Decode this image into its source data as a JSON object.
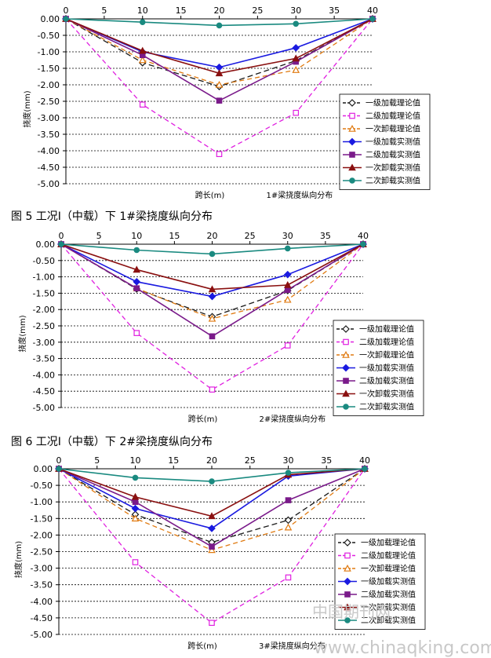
{
  "series_styles": [
    {
      "color": "#1a1a1a",
      "dash": "7,4",
      "marker": "diamond-open"
    },
    {
      "color": "#e020e0",
      "dash": "6,4",
      "marker": "square-open"
    },
    {
      "color": "#e07a10",
      "dash": "6,4",
      "marker": "triangle-open"
    },
    {
      "color": "#1a1ae0",
      "dash": "",
      "marker": "diamond"
    },
    {
      "color": "#7a1a8a",
      "dash": "",
      "marker": "square"
    },
    {
      "color": "#8a1010",
      "dash": "",
      "marker": "triangle"
    },
    {
      "color": "#1a8a80",
      "dash": "",
      "marker": "circle"
    }
  ],
  "captions": [
    "图 5 工况Ⅰ（中载）下 1#梁挠度纵向分布",
    "图 6 工况Ⅰ（中载）下 2#梁挠度纵向分布"
  ],
  "watermark": {
    "text": "www.chinaqking.com",
    "cn_text": "中国期刊网"
  },
  "chart_data": [
    {
      "type": "line",
      "xlabel": "跨长(m)",
      "note": "1#梁挠度纵向分布",
      "ylabel": "挠度(mm)",
      "xlim": [
        0,
        40
      ],
      "ylim": [
        -5.0,
        0.0
      ],
      "xticks": [
        "0",
        "5",
        "10",
        "15",
        "20",
        "25",
        "30",
        "35",
        "40"
      ],
      "yticks": [
        "0.00",
        "-0.50",
        "-1.00",
        "-1.50",
        "-2.00",
        "-2.50",
        "-3.00",
        "-3.50",
        "-4.00",
        "-4.50",
        "-5.00"
      ],
      "grid": "horizontal dashed",
      "legend_position": "right",
      "x": [
        0,
        10,
        20,
        30,
        40
      ],
      "series": [
        {
          "name": "一级加载理论值",
          "values": [
            0,
            -1.33,
            -2.05,
            -1.27,
            0
          ]
        },
        {
          "name": "二级加载理论值",
          "values": [
            0,
            -2.6,
            -4.1,
            -2.85,
            0
          ]
        },
        {
          "name": "一次卸载理论值",
          "values": [
            0,
            -1.25,
            -2.0,
            -1.55,
            0
          ]
        },
        {
          "name": "一级加载实测值",
          "values": [
            0,
            -1.0,
            -1.47,
            -0.88,
            0
          ]
        },
        {
          "name": "二级加载实测值",
          "values": [
            0,
            -1.1,
            -2.48,
            -1.3,
            0
          ]
        },
        {
          "name": "一次卸载实测值",
          "values": [
            0,
            -0.97,
            -1.65,
            -1.2,
            0
          ]
        },
        {
          "name": "二次卸载实测值",
          "values": [
            0,
            -0.1,
            -0.2,
            -0.15,
            0
          ]
        }
      ]
    },
    {
      "type": "line",
      "xlabel": "跨长(m)",
      "note": "2#梁挠度纵向分布",
      "ylabel": "挠度(mm)",
      "xlim": [
        0,
        40
      ],
      "ylim": [
        -5.0,
        0.0
      ],
      "xticks": [
        "0",
        "5",
        "10",
        "15",
        "20",
        "25",
        "30",
        "35",
        "40"
      ],
      "yticks": [
        "0.00",
        "-0.50",
        "-1.00",
        "-1.50",
        "-2.00",
        "-2.50",
        "-3.00",
        "-3.50",
        "-4.00",
        "-4.50",
        "-5.00"
      ],
      "grid": "horizontal dashed",
      "legend_position": "right",
      "x": [
        0,
        10,
        20,
        30,
        40
      ],
      "series": [
        {
          "name": "一级加载理论值",
          "values": [
            0,
            -1.37,
            -2.22,
            -1.42,
            0
          ]
        },
        {
          "name": "二级加载理论值",
          "values": [
            0,
            -2.72,
            -4.45,
            -3.1,
            0
          ]
        },
        {
          "name": "一次卸载理论值",
          "values": [
            0,
            -1.35,
            -2.28,
            -1.7,
            0
          ]
        },
        {
          "name": "一级加载实测值",
          "values": [
            0,
            -1.15,
            -1.6,
            -0.93,
            0
          ]
        },
        {
          "name": "二级加载实测值",
          "values": [
            0,
            -1.35,
            -2.82,
            -1.4,
            0
          ]
        },
        {
          "name": "一次卸载实测值",
          "values": [
            0,
            -0.78,
            -1.38,
            -1.25,
            0
          ]
        },
        {
          "name": "二次卸载实测值",
          "values": [
            0,
            -0.18,
            -0.3,
            -0.13,
            0
          ]
        }
      ]
    },
    {
      "type": "line",
      "xlabel": "跨长(m)",
      "note": "3#梁挠度纵向分布",
      "ylabel": "挠度(mm)",
      "xlim": [
        0,
        40
      ],
      "ylim": [
        -5.0,
        0.0
      ],
      "xticks": [
        "0",
        "5",
        "10",
        "15",
        "20",
        "25",
        "30",
        "35",
        "40"
      ],
      "yticks": [
        "0.00",
        "-0.50",
        "-1.00",
        "-1.50",
        "-2.00",
        "-2.50",
        "-3.00",
        "-3.50",
        "-4.00",
        "-4.50",
        "-5.00"
      ],
      "grid": "horizontal dashed",
      "legend_position": "right",
      "x": [
        0,
        10,
        20,
        30,
        40
      ],
      "series": [
        {
          "name": "一级加载理论值",
          "values": [
            0,
            -1.38,
            -2.22,
            -1.55,
            0
          ]
        },
        {
          "name": "二级加载理论值",
          "values": [
            0,
            -2.82,
            -4.65,
            -3.28,
            0
          ]
        },
        {
          "name": "一次卸载理论值",
          "values": [
            0,
            -1.5,
            -2.45,
            -1.77,
            0
          ]
        },
        {
          "name": "一级加载实测值",
          "values": [
            0,
            -1.2,
            -1.8,
            -0.22,
            0
          ]
        },
        {
          "name": "二级加载实测值",
          "values": [
            0,
            -1.0,
            -2.35,
            -0.95,
            0
          ]
        },
        {
          "name": "一次卸载实测值",
          "values": [
            0,
            -0.85,
            -1.43,
            -0.18,
            0
          ]
        },
        {
          "name": "二次卸载实测值",
          "values": [
            0,
            -0.27,
            -0.38,
            -0.12,
            0
          ]
        }
      ]
    }
  ]
}
